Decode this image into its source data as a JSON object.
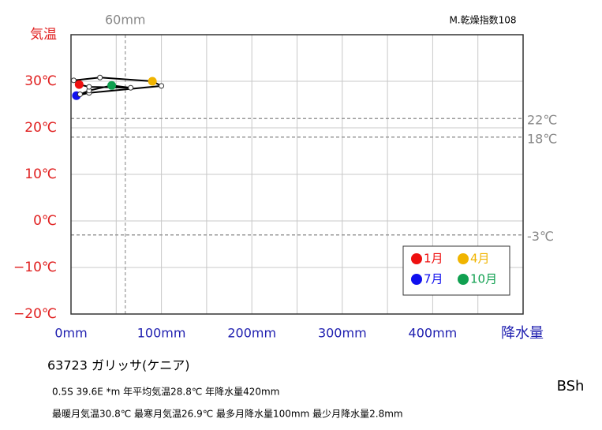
{
  "chart_data": {
    "type": "climograph",
    "corner_note": "M.乾燥指数108",
    "y_label": "気温",
    "x_label": "降水量",
    "x": [
      9,
      3,
      32,
      90,
      100,
      20,
      6,
      10,
      20,
      45,
      66,
      20
    ],
    "series": [
      {
        "color": "#000000",
        "values": [
          29.3,
          30.2,
          30.8,
          30.0,
          29.0,
          27.5,
          26.9,
          27.2,
          28.0,
          29.1,
          28.6,
          28.8
        ]
      }
    ],
    "xlim": [
      0,
      500
    ],
    "ylim": [
      -20,
      40
    ],
    "xticks": [
      {
        "value": 0,
        "label": "0mm"
      },
      {
        "value": 100,
        "label": "100mm"
      },
      {
        "value": 200,
        "label": "200mm"
      },
      {
        "value": 300,
        "label": "300mm"
      },
      {
        "value": 400,
        "label": "400mm"
      }
    ],
    "xminor": [
      50,
      150,
      250,
      350,
      450,
      500
    ],
    "yticks": [
      {
        "value": -20,
        "label": "−20℃"
      },
      {
        "value": -10,
        "label": "−10℃"
      },
      {
        "value": 0,
        "label": "0℃"
      },
      {
        "value": 10,
        "label": "10℃"
      },
      {
        "value": 20,
        "label": "20℃"
      },
      {
        "value": 30,
        "label": "30℃"
      },
      {
        "value": 40,
        "label": "気温"
      }
    ],
    "vlines": [
      {
        "value": 60,
        "label": "60mm"
      }
    ],
    "hlines": [
      {
        "value": 22,
        "label": "22℃"
      },
      {
        "value": 18,
        "label": "18℃"
      },
      {
        "value": -3,
        "label": "-3℃"
      }
    ],
    "legend": [
      {
        "name": "1月",
        "color": "#ee1010"
      },
      {
        "name": "4月",
        "color": "#f0b400"
      },
      {
        "name": "7月",
        "color": "#1010ee"
      },
      {
        "name": "10月",
        "color": "#10a050"
      }
    ]
  },
  "station": "63723  ガリッサ(ケニア)",
  "info_lines": [
    "0.5S  39.6E *m  年平均気温28.8℃ 年降水量420mm",
    "最暖月気温30.8℃ 最寒月気温26.9℃ 最多月降水量100mm 最少月降水量2.8mm"
  ],
  "climate_class": "BSh"
}
